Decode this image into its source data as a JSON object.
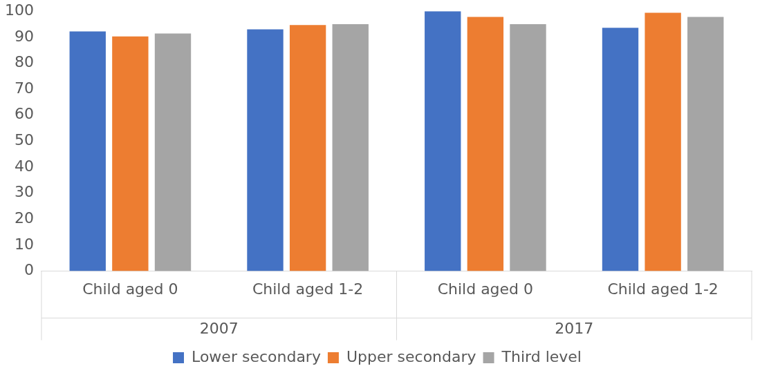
{
  "chart_data": {
    "type": "bar",
    "categories": [
      "Child aged 0",
      "Child aged 1-2",
      "Child aged 0",
      "Child aged 1-2"
    ],
    "series": [
      {
        "name": "Lower secondary",
        "color": "#4472c4",
        "values": [
          92.2,
          93.0,
          100,
          93.6
        ]
      },
      {
        "name": "Upper secondary",
        "color": "#ed7d31",
        "values": [
          90.3,
          94.7,
          97.8,
          99.4
        ]
      },
      {
        "name": "Third level",
        "color": "#a5a5a5",
        "values": [
          91.4,
          95.0,
          95.0,
          97.8
        ]
      }
    ],
    "annotations": [
      "2007",
      "2017"
    ],
    "ylim": [
      0,
      100
    ],
    "yticks": [
      0,
      10,
      20,
      30,
      40,
      50,
      60,
      70,
      80,
      90,
      100
    ],
    "grid": false,
    "legend": "bottom"
  }
}
